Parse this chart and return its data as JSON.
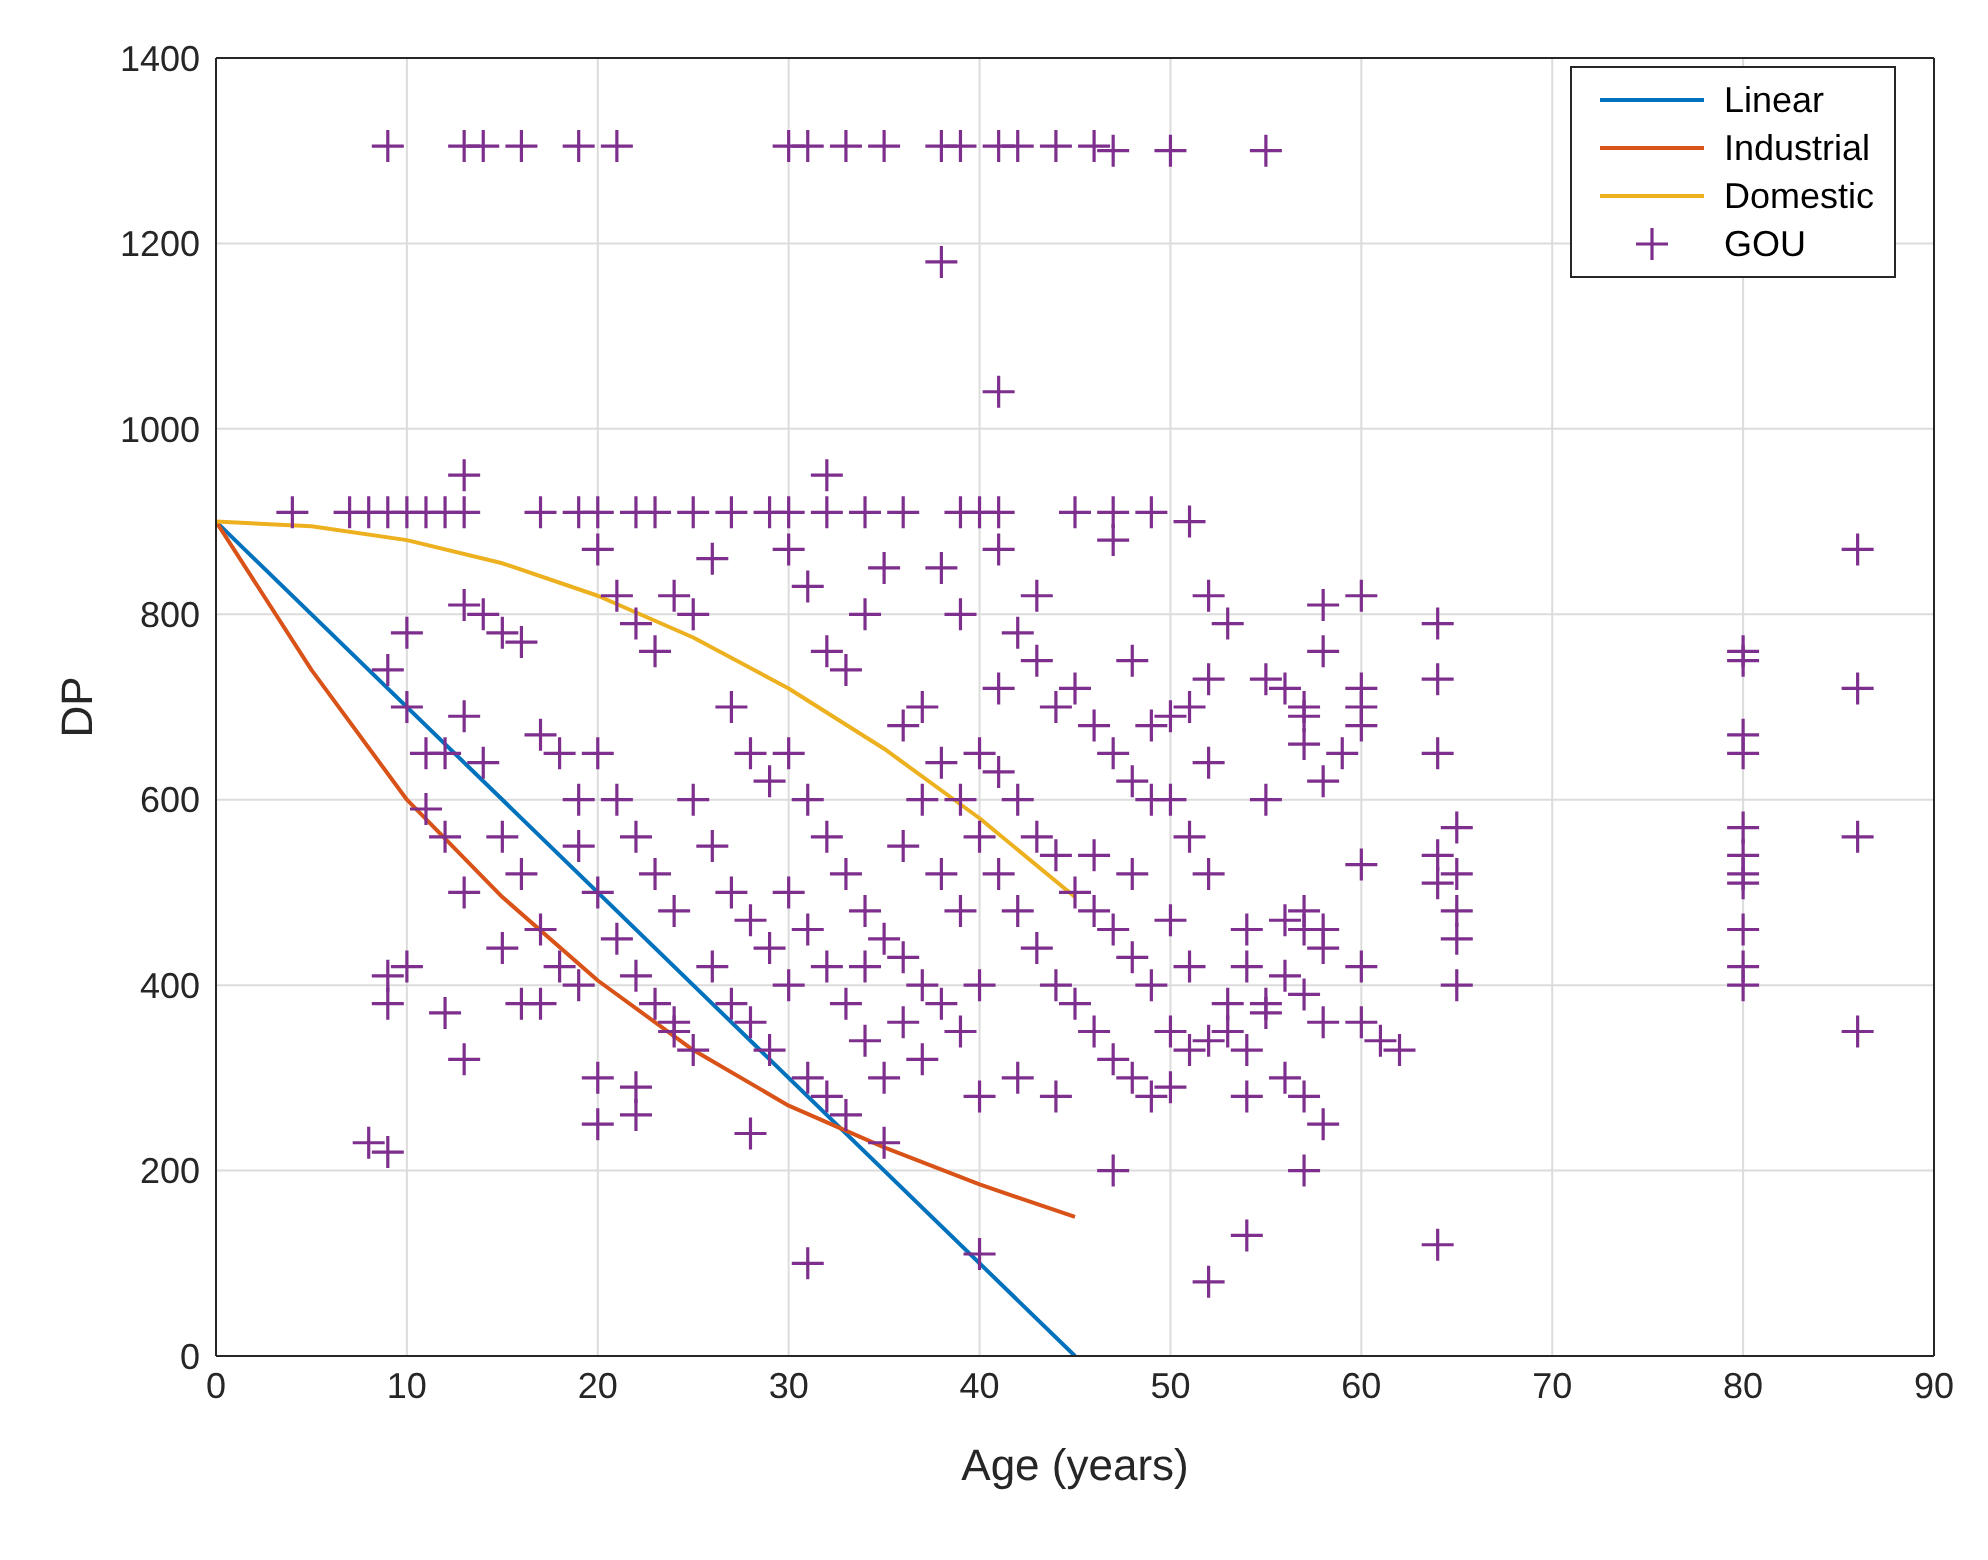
{
  "chart_data": {
    "type": "scatter",
    "xlabel": "Age (years)",
    "ylabel": "DP",
    "xlim": [
      0,
      90
    ],
    "xticks": [
      0,
      10,
      20,
      30,
      40,
      50,
      60,
      70,
      80,
      90
    ],
    "ylim": [
      0,
      1400
    ],
    "yticks": [
      0,
      200,
      400,
      600,
      800,
      1000,
      1200,
      1400
    ],
    "grid": true,
    "legend": "top right",
    "series": [
      {
        "name": "Linear",
        "type": "line",
        "color": "#0072bd",
        "x": [
          0,
          45
        ],
        "values": [
          900,
          0
        ]
      },
      {
        "name": "Industrial",
        "type": "line",
        "color": "#d95319",
        "x": [
          0,
          5,
          10,
          15,
          20,
          25,
          30,
          35,
          40,
          45
        ],
        "values": [
          900,
          740,
          600,
          495,
          405,
          330,
          270,
          225,
          185,
          150
        ]
      },
      {
        "name": "Domestic",
        "type": "line",
        "color": "#edb120",
        "x": [
          0,
          5,
          10,
          15,
          20,
          25,
          30,
          35,
          40,
          45
        ],
        "values": [
          900,
          895,
          880,
          855,
          820,
          775,
          720,
          655,
          580,
          495
        ]
      },
      {
        "name": "GOU",
        "color": "#7e2f8e",
        "marker": "cross",
        "x": [
          9,
          13,
          14,
          16,
          19,
          21,
          30,
          31,
          33,
          35,
          38,
          39,
          41,
          42,
          44,
          46,
          47,
          50,
          55,
          38,
          41,
          13,
          32,
          4,
          7,
          8,
          9,
          10,
          11,
          12,
          13,
          17,
          19,
          20,
          22,
          23,
          25,
          27,
          29,
          30,
          32,
          34,
          36,
          39,
          41,
          45,
          47,
          49,
          51,
          8,
          9,
          31,
          40,
          52,
          54,
          64,
          47,
          57,
          28,
          35,
          20,
          22,
          13,
          12,
          9,
          10,
          9,
          80,
          80,
          80,
          80,
          80,
          80,
          80,
          80,
          80,
          80,
          80,
          86,
          86,
          86,
          86,
          60,
          60,
          60,
          60,
          59,
          60,
          60,
          60,
          61,
          62,
          64,
          64,
          64,
          64,
          64,
          65,
          65,
          65,
          65,
          65,
          55,
          56,
          57,
          57,
          57,
          58,
          58,
          58,
          55,
          55,
          56,
          57,
          57,
          58,
          58,
          56,
          57,
          55,
          56,
          57,
          58,
          58,
          54,
          54,
          54,
          53,
          50,
          51,
          52,
          52,
          53,
          50,
          51,
          52,
          50,
          51,
          52,
          50,
          51,
          53,
          50,
          52,
          54,
          40,
          41,
          42,
          43,
          44,
          45,
          46,
          47,
          48,
          49,
          40,
          41,
          42,
          43,
          44,
          45,
          46,
          47,
          48,
          49,
          40,
          41,
          42,
          43,
          44,
          45,
          46,
          47,
          48,
          49,
          40,
          42,
          44,
          41,
          43,
          47,
          48,
          49,
          46,
          48,
          40,
          38,
          39,
          30,
          31,
          32,
          33,
          34,
          35,
          36,
          37,
          38,
          39,
          30,
          31,
          32,
          33,
          34,
          35,
          36,
          37,
          38,
          39,
          30,
          31,
          32,
          33,
          34,
          35,
          36,
          37,
          38,
          39,
          30,
          31,
          32,
          33,
          34,
          36,
          37,
          20,
          21,
          22,
          23,
          24,
          25,
          26,
          27,
          28,
          29,
          20,
          21,
          22,
          23,
          24,
          25,
          26,
          27,
          28,
          29,
          20,
          21,
          22,
          23,
          24,
          25,
          26,
          27,
          28,
          29,
          20,
          22,
          24,
          10,
          9,
          10,
          11,
          12,
          13,
          14,
          15,
          16,
          17,
          18,
          19,
          13,
          14,
          15,
          16,
          17,
          18,
          19,
          12,
          11,
          13,
          17,
          19,
          16,
          15
        ],
        "values": [
          1305,
          1305,
          1305,
          1305,
          1305,
          1305,
          1305,
          1305,
          1305,
          1305,
          1305,
          1305,
          1305,
          1305,
          1305,
          1305,
          1300,
          1300,
          1300,
          1180,
          1040,
          950,
          950,
          910,
          910,
          910,
          910,
          910,
          910,
          910,
          910,
          910,
          910,
          910,
          910,
          910,
          910,
          910,
          910,
          910,
          910,
          910,
          910,
          910,
          910,
          910,
          910,
          910,
          900,
          230,
          220,
          100,
          110,
          80,
          130,
          120,
          200,
          200,
          240,
          230,
          250,
          260,
          320,
          370,
          380,
          420,
          410,
          760,
          750,
          670,
          650,
          570,
          540,
          520,
          510,
          460,
          420,
          400,
          870,
          720,
          560,
          350,
          820,
          720,
          700,
          680,
          650,
          530,
          420,
          360,
          340,
          330,
          510,
          790,
          730,
          650,
          540,
          450,
          570,
          520,
          480,
          400,
          380,
          720,
          700,
          690,
          660,
          620,
          810,
          760,
          730,
          600,
          470,
          460,
          480,
          440,
          460,
          410,
          390,
          370,
          300,
          280,
          250,
          360,
          330,
          460,
          420,
          350,
          290,
          700,
          730,
          820,
          790,
          690,
          560,
          640,
          600,
          420,
          520,
          470,
          330,
          380,
          350,
          340,
          280,
          910,
          870,
          780,
          750,
          700,
          720,
          680,
          650,
          620,
          600,
          650,
          630,
          600,
          560,
          540,
          500,
          480,
          460,
          430,
          400,
          560,
          520,
          480,
          440,
          400,
          380,
          350,
          320,
          300,
          280,
          400,
          300,
          280,
          720,
          820,
          880,
          750,
          680,
          540,
          520,
          280,
          850,
          800,
          870,
          830,
          760,
          740,
          800,
          850,
          680,
          700,
          640,
          600,
          650,
          600,
          560,
          520,
          480,
          450,
          430,
          400,
          380,
          350,
          500,
          460,
          420,
          380,
          340,
          300,
          550,
          600,
          520,
          480,
          400,
          300,
          280,
          260,
          420,
          360,
          320,
          870,
          820,
          790,
          760,
          820,
          800,
          860,
          700,
          650,
          620,
          650,
          600,
          560,
          520,
          480,
          600,
          550,
          500,
          470,
          440,
          500,
          450,
          410,
          380,
          350,
          330,
          420,
          380,
          360,
          330,
          300,
          290,
          360,
          780,
          740,
          700,
          650,
          650,
          810,
          800,
          780,
          770,
          670,
          650,
          600,
          690,
          640,
          560,
          520,
          460,
          420,
          400,
          560,
          590,
          500,
          380,
          550,
          380,
          440
        ]
      }
    ]
  }
}
